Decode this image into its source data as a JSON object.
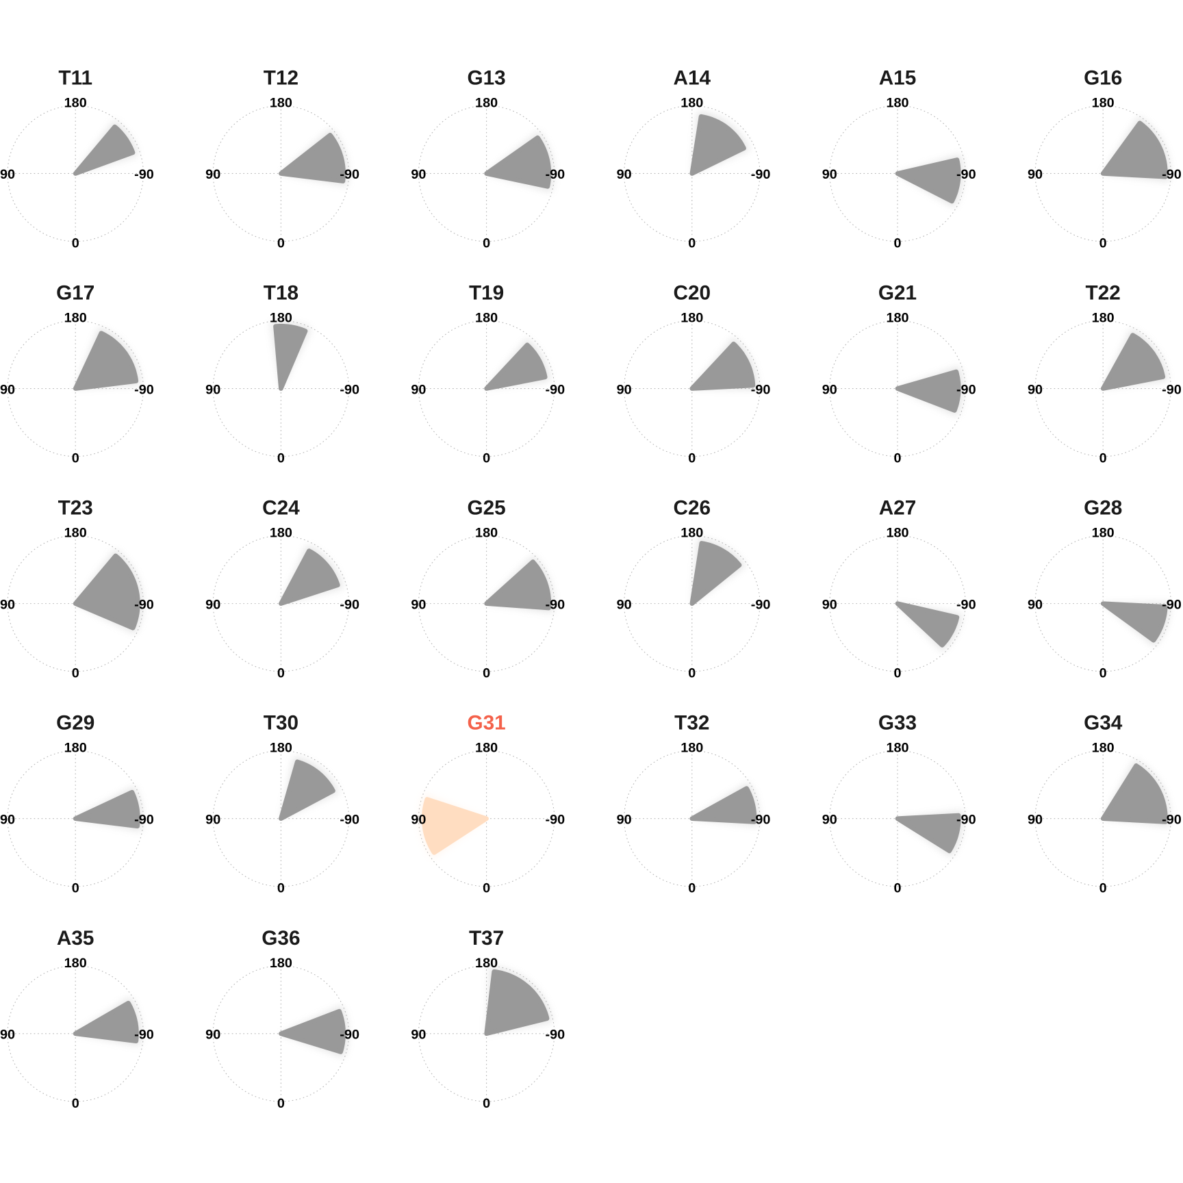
{
  "chart_data": {
    "type": "scatter",
    "subtype": "polar-faceted",
    "angle_ticks": [
      "180",
      "90",
      "-90",
      "0"
    ],
    "angle_orientation": "0 at bottom, 90 left, 180 top, -90 right",
    "grid": true,
    "point_color": "#999999",
    "highlight_point_color": "#FFDDC1",
    "title_color": "#1a1a1a",
    "highlight_title_color": "#F4614A",
    "panels": [
      {
        "title": "T11",
        "angle_range": [
          -140,
          -110
        ],
        "radial_extent": 0.9
      },
      {
        "title": "T12",
        "angle_range": [
          -128,
          -83
        ],
        "radial_extent": 0.92
      },
      {
        "title": "G13",
        "angle_range": [
          -125,
          -78
        ],
        "radial_extent": 0.92
      },
      {
        "title": "A14",
        "angle_range": [
          -171,
          -116
        ],
        "radial_extent": 0.85
      },
      {
        "title": "A15",
        "angle_range": [
          -103,
          -63
        ],
        "radial_extent": 0.9
      },
      {
        "title": "G16",
        "angle_range": [
          -144,
          -87
        ],
        "radial_extent": 0.92
      },
      {
        "title": "G17",
        "angle_range": [
          -155,
          -97
        ],
        "radial_extent": 0.9
      },
      {
        "title": "T18",
        "angle_range": [
          -185,
          -157
        ],
        "radial_extent": 0.92
      },
      {
        "title": "T19",
        "angle_range": [
          -137,
          -101
        ],
        "radial_extent": 0.88
      },
      {
        "title": "C20",
        "angle_range": [
          -137,
          -93
        ],
        "radial_extent": 0.9
      },
      {
        "title": "G21",
        "angle_range": [
          -106,
          -69
        ],
        "radial_extent": 0.9
      },
      {
        "title": "T22",
        "angle_range": [
          -151,
          -101
        ],
        "radial_extent": 0.9
      },
      {
        "title": "T23",
        "angle_range": [
          -140,
          -67
        ],
        "radial_extent": 0.92
      },
      {
        "title": "C24",
        "angle_range": [
          -152,
          -108
        ],
        "radial_extent": 0.88
      },
      {
        "title": "G25",
        "angle_range": [
          -132,
          -86
        ],
        "radial_extent": 0.92
      },
      {
        "title": "C26",
        "angle_range": [
          -171,
          -129
        ],
        "radial_extent": 0.9
      },
      {
        "title": "A27",
        "angle_range": [
          -77,
          -47
        ],
        "radial_extent": 0.9
      },
      {
        "title": "G28",
        "angle_range": [
          -87,
          -54
        ],
        "radial_extent": 0.92
      },
      {
        "title": "G29",
        "angle_range": [
          -115,
          -83
        ],
        "radial_extent": 0.92
      },
      {
        "title": "T30",
        "angle_range": [
          -164,
          -118
        ],
        "radial_extent": 0.87
      },
      {
        "title": "G31",
        "angle_range": [
          57,
          108
        ],
        "radial_extent": 0.92,
        "highlight": true
      },
      {
        "title": "T32",
        "angle_range": [
          -119,
          -87
        ],
        "radial_extent": 0.92
      },
      {
        "title": "G33",
        "angle_range": [
          -93,
          -58
        ],
        "radial_extent": 0.9
      },
      {
        "title": "G34",
        "angle_range": [
          -148,
          -87
        ],
        "radial_extent": 0.92
      },
      {
        "title": "A35",
        "angle_range": [
          -120,
          -83
        ],
        "radial_extent": 0.9
      },
      {
        "title": "G36",
        "angle_range": [
          -111,
          -73
        ],
        "radial_extent": 0.92
      },
      {
        "title": "T37",
        "angle_range": [
          -173,
          -104
        ],
        "radial_extent": 0.92
      }
    ]
  }
}
